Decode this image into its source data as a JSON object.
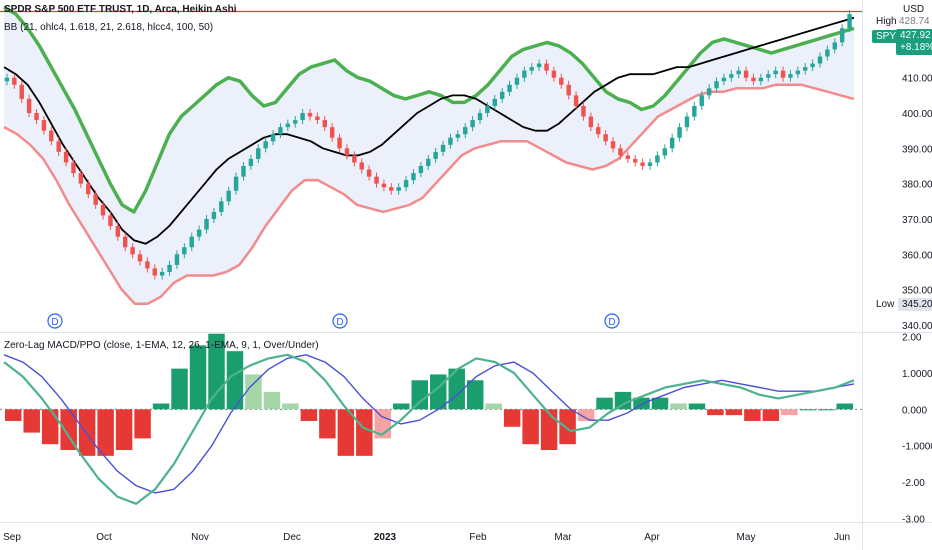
{
  "header": {
    "symbol_line": "SPDR S&P 500 ETF TRUST, 1D, Arca, Heikin Ashi",
    "bb_line": "BB (21, ohlc4, 1.618, 21, 2.618, hlcc4, 100, 50)"
  },
  "macd_header": "Zero-Lag MACD/PPO (close, 1-EMA, 12, 26, 1-EMA, 9, 1, Over/Under)",
  "axis": {
    "currency": "USD",
    "high_label": "High",
    "high_value": "428.74",
    "low_label": "Low",
    "low_value": "345.20",
    "symbol_tag": "SPY",
    "last_price": "427.92",
    "change_pct": "+8.18%",
    "price_ticks": [
      "420.00",
      "410.00",
      "400.00",
      "390.00",
      "380.00",
      "370.00",
      "360.00",
      "350.00",
      "340.00"
    ],
    "macd_ticks": [
      "2.00",
      "1.0000",
      "0.000",
      "-1.0000",
      "-2.00",
      "-3.00"
    ],
    "time_ticks": [
      "Sep",
      "Oct",
      "Nov",
      "Dec",
      "2023",
      "Feb",
      "Mar",
      "Apr",
      "May",
      "Jun"
    ],
    "dividend_marker": "D"
  },
  "colors": {
    "up": "#26a69a",
    "down": "#ef5350",
    "bb_upper": "#4caf50",
    "bb_lower": "#f28b8b",
    "bb_fill": "#dde4f7",
    "basis": "#000000",
    "macd_line": "#4db38f",
    "signal_line": "#4a4fd6",
    "macd_red": "#e53935",
    "high_line": "#e53935",
    "tag_bg": "#1a9e7e"
  },
  "chart_data": {
    "type": "candlestick",
    "title": "SPDR S&P 500 ETF TRUST, 1D, Arca, Heikin Ashi",
    "price_range": [
      338,
      432
    ],
    "high_line": 428.74,
    "low_value": 345.2,
    "ha_closes": [
      410,
      408,
      404,
      400,
      398,
      395,
      392,
      389,
      386,
      383,
      380,
      377,
      374,
      371,
      368,
      365,
      362,
      360,
      358,
      356,
      354,
      355,
      357,
      360,
      362,
      365,
      367,
      370,
      372,
      375,
      378,
      382,
      385,
      387,
      390,
      392,
      394,
      396,
      397,
      398,
      400,
      399,
      398,
      396,
      393,
      390,
      388,
      386,
      384,
      382,
      380,
      379,
      378,
      379,
      381,
      383,
      385,
      387,
      389,
      391,
      393,
      394,
      396,
      398,
      400,
      402,
      404,
      406,
      408,
      410,
      412,
      413,
      414,
      412,
      410,
      408,
      405,
      402,
      399,
      396,
      394,
      392,
      390,
      388,
      387,
      386,
      385,
      386,
      388,
      390,
      393,
      396,
      399,
      402,
      405,
      407,
      409,
      410,
      411,
      412,
      410,
      409,
      410,
      411,
      412,
      410,
      411,
      412,
      413,
      414,
      416,
      418,
      420,
      424,
      428
    ],
    "bb_upper": [
      430,
      428,
      424,
      419,
      413,
      407,
      401,
      394,
      387,
      380,
      374,
      372,
      378,
      386,
      394,
      399,
      402,
      405,
      408,
      410,
      409,
      405,
      402,
      403,
      407,
      411,
      413,
      414,
      415,
      412,
      410,
      409,
      407,
      405,
      404,
      405,
      406,
      405,
      403,
      403,
      405,
      408,
      412,
      416,
      418,
      419,
      420,
      419,
      417,
      414,
      410,
      406,
      404,
      403,
      401,
      402,
      405,
      409,
      413,
      417,
      420,
      421,
      420,
      419,
      418,
      417,
      418,
      419,
      420,
      421,
      422,
      423,
      424
    ],
    "bb_basis": [
      413,
      411,
      408,
      403,
      397,
      391,
      386,
      381,
      376,
      372,
      367,
      364,
      363,
      365,
      368,
      372,
      376,
      380,
      384,
      387,
      389,
      391,
      393,
      394,
      394,
      393,
      392,
      390,
      389,
      388,
      388,
      389,
      391,
      394,
      397,
      400,
      402,
      404,
      405,
      405,
      404,
      402,
      400,
      398,
      396,
      395,
      395,
      397,
      400,
      403,
      406,
      408,
      410,
      411,
      411,
      411,
      412,
      413,
      413,
      414,
      415,
      416,
      417,
      418,
      419,
      420,
      421,
      422,
      423,
      424,
      425,
      426,
      427
    ],
    "bb_lower": [
      396,
      394,
      391,
      387,
      381,
      374,
      368,
      362,
      356,
      350,
      346,
      346,
      348,
      352,
      354,
      354,
      354,
      355,
      357,
      362,
      368,
      373,
      378,
      381,
      381,
      379,
      377,
      374,
      373,
      372,
      373,
      374,
      376,
      380,
      384,
      388,
      390,
      391,
      392,
      392,
      392,
      390,
      388,
      386,
      385,
      384,
      385,
      387,
      391,
      395,
      399,
      401,
      403,
      405,
      406,
      406,
      407,
      407,
      407,
      408,
      408,
      408,
      407,
      406,
      405,
      404
    ],
    "macd_range": [
      -3.1,
      2.1
    ],
    "macd_line": [
      1.3,
      0.9,
      0.3,
      -0.4,
      -1.2,
      -1.9,
      -2.4,
      -2.6,
      -2.2,
      -1.5,
      -0.6,
      0.3,
      0.9,
      1.2,
      1.4,
      1.5,
      1.3,
      0.8,
      0.1,
      -0.5,
      -0.7,
      -0.3,
      0.2,
      0.6,
      1.1,
      1.4,
      1.3,
      1.0,
      0.4,
      -0.2,
      -0.6,
      -0.5,
      -0.1,
      0.2,
      0.4,
      0.6,
      0.7,
      0.8,
      0.7,
      0.6,
      0.4,
      0.3,
      0.4,
      0.5,
      0.6,
      0.8
    ],
    "signal_line": [
      1.5,
      1.3,
      0.9,
      0.3,
      -0.4,
      -1.1,
      -1.7,
      -2.1,
      -2.3,
      -2.2,
      -1.7,
      -1.0,
      -0.1,
      0.6,
      1.1,
      1.4,
      1.5,
      1.3,
      0.9,
      0.3,
      -0.2,
      -0.4,
      -0.3,
      0.0,
      0.4,
      0.9,
      1.2,
      1.3,
      1.0,
      0.5,
      0.0,
      -0.3,
      -0.3,
      -0.1,
      0.2,
      0.4,
      0.6,
      0.7,
      0.8,
      0.7,
      0.6,
      0.5,
      0.5,
      0.5,
      0.6,
      0.7
    ]
  }
}
